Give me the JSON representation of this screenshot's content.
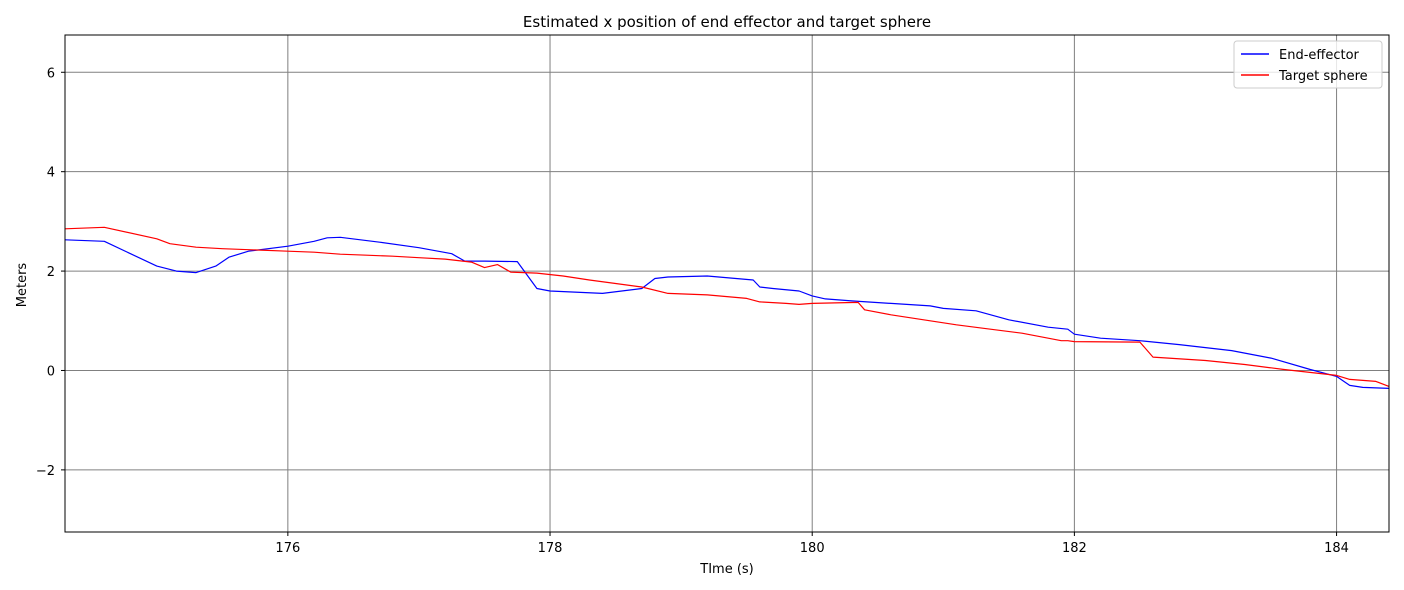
{
  "chart_data": {
    "type": "line",
    "title": "Estimated x position of end effector and target sphere",
    "xlabel": "TIme (s)",
    "ylabel": "Meters",
    "xlim": [
      174.3,
      184.4
    ],
    "ylim": [
      -3.25,
      6.75
    ],
    "xticks": [
      176,
      178,
      180,
      182,
      184
    ],
    "yticks": [
      -2,
      0,
      2,
      4,
      6
    ],
    "grid": true,
    "legend_position": "top-right",
    "series": [
      {
        "name": "End-effector",
        "color": "#0000ff",
        "x": [
          174.3,
          174.6,
          174.8,
          175.0,
          175.15,
          175.3,
          175.45,
          175.55,
          175.7,
          176.0,
          176.2,
          176.3,
          176.4,
          176.7,
          177.0,
          177.25,
          177.35,
          177.5,
          177.75,
          177.9,
          178.0,
          178.4,
          178.7,
          178.8,
          178.9,
          179.2,
          179.55,
          179.6,
          179.7,
          179.9,
          180.0,
          180.1,
          180.3,
          180.9,
          181.0,
          181.25,
          181.5,
          181.8,
          181.95,
          182.0,
          182.2,
          182.5,
          182.8,
          183.2,
          183.5,
          183.8,
          184.0,
          184.1,
          184.2,
          184.4
        ],
        "y": [
          2.63,
          2.6,
          2.35,
          2.1,
          2.0,
          1.97,
          2.1,
          2.28,
          2.4,
          2.5,
          2.6,
          2.67,
          2.68,
          2.58,
          2.47,
          2.35,
          2.2,
          2.2,
          2.19,
          1.65,
          1.6,
          1.55,
          1.65,
          1.85,
          1.88,
          1.9,
          1.82,
          1.68,
          1.65,
          1.6,
          1.5,
          1.44,
          1.4,
          1.3,
          1.25,
          1.2,
          1.02,
          0.87,
          0.83,
          0.73,
          0.65,
          0.6,
          0.52,
          0.4,
          0.25,
          0.02,
          -0.12,
          -0.3,
          -0.34,
          -0.36
        ]
      },
      {
        "name": "Target sphere",
        "color": "#ff0000",
        "x": [
          174.3,
          174.6,
          175.0,
          175.1,
          175.3,
          175.5,
          175.7,
          176.0,
          176.2,
          176.4,
          176.6,
          176.8,
          177.0,
          177.2,
          177.4,
          177.5,
          177.6,
          177.7,
          177.9,
          178.1,
          178.3,
          178.5,
          178.7,
          178.9,
          179.2,
          179.5,
          179.6,
          179.8,
          179.9,
          180.0,
          180.35,
          180.4,
          180.6,
          180.9,
          181.1,
          181.3,
          181.6,
          181.9,
          181.95,
          182.0,
          182.5,
          182.6,
          183.0,
          183.3,
          183.6,
          184.0,
          184.1,
          184.3,
          184.4
        ],
        "y": [
          2.85,
          2.88,
          2.65,
          2.55,
          2.48,
          2.45,
          2.43,
          2.4,
          2.38,
          2.34,
          2.32,
          2.3,
          2.27,
          2.24,
          2.18,
          2.07,
          2.13,
          1.98,
          1.96,
          1.9,
          1.82,
          1.75,
          1.68,
          1.55,
          1.52,
          1.45,
          1.38,
          1.35,
          1.33,
          1.35,
          1.37,
          1.22,
          1.12,
          1.0,
          0.92,
          0.85,
          0.75,
          0.6,
          0.6,
          0.58,
          0.57,
          0.27,
          0.2,
          0.12,
          0.02,
          -0.1,
          -0.18,
          -0.22,
          -0.32
        ]
      }
    ]
  }
}
